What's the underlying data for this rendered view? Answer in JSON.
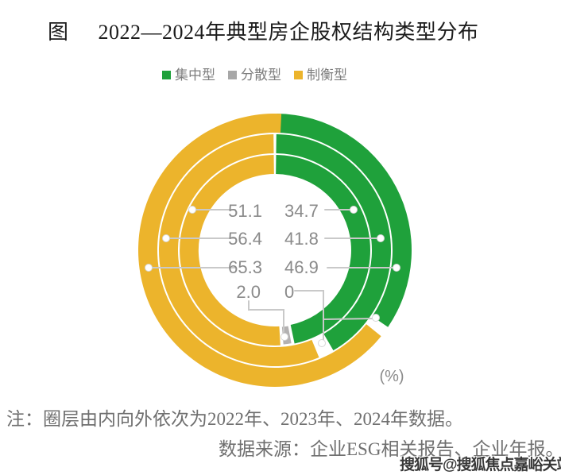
{
  "title": {
    "prefix": "图",
    "main": "2022—2024年典型房企股权结构类型分布"
  },
  "legend": {
    "items": [
      {
        "label": "集中型",
        "color": "#1fa13b"
      },
      {
        "label": "分散型",
        "color": "#a7a7a7"
      },
      {
        "label": "制衡型",
        "color": "#ecb42c"
      }
    ]
  },
  "chart_data": {
    "type": "donut",
    "subtype": "three concentric rings, segments clockwise from 12 o'clock",
    "unit_label": "(%)",
    "legend_entries": [
      "集中型",
      "分散型",
      "制衡型"
    ],
    "rings": [
      {
        "position": "inner",
        "segments": [
          {
            "label": "集中型",
            "value": 46.9,
            "color": "#1fa13b"
          },
          {
            "label": "分散型",
            "value": 2.0,
            "color": "#b3b1b1",
            "outlined": true
          },
          {
            "label": "制衡型",
            "value": 51.1,
            "color": "#ecb42c"
          }
        ]
      },
      {
        "position": "middle",
        "segments": [
          {
            "label": "集中型",
            "value": 41.8,
            "color": "#1fa13b"
          },
          {
            "label": "分散型",
            "value": 1.8,
            "color": "none"
          },
          {
            "label": "制衡型",
            "value": 56.4,
            "color": "#ecb42c"
          }
        ]
      },
      {
        "position": "outer",
        "segments": [
          {
            "label": "集中型",
            "value": 34.7,
            "color": "#1fa13b"
          },
          {
            "label": "分散型",
            "value": 0,
            "color": "none",
            "draw_deg": 3.4
          },
          {
            "label": "制衡型",
            "value": 65.3,
            "color": "#ecb42c"
          }
        ]
      }
    ],
    "callouts": {
      "rows": [
        {
          "left": "51.1",
          "right": "34.7"
        },
        {
          "left": "56.4",
          "right": "41.8"
        },
        {
          "left": "65.3",
          "right": "46.9"
        },
        {
          "left": "2.0",
          "right": "0"
        }
      ]
    }
  },
  "notes": {
    "line1": "注：圈层由内向外依次为2022年、2023年、2024年数据。",
    "line2": "数据来源：企业ESG相关报告、企业年报。"
  },
  "watermark": "搜狐号@搜狐焦点嘉峪关站"
}
